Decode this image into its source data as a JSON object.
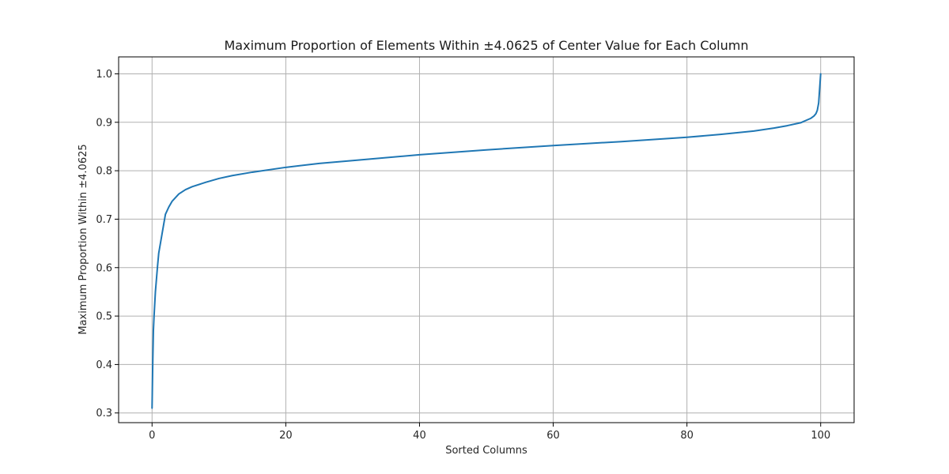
{
  "chart_data": {
    "type": "line",
    "title": "Maximum Proportion of Elements Within ±4.0625 of Center Value for Each Column",
    "xlabel": "Sorted Columns",
    "ylabel": "Maximum Proportion Within ±4.0625",
    "xlim": [
      -5,
      105
    ],
    "ylim": [
      0.28,
      1.035
    ],
    "xticks": [
      0,
      20,
      40,
      60,
      80,
      100
    ],
    "yticks": [
      0.3,
      0.4,
      0.5,
      0.6,
      0.7,
      0.8,
      0.9,
      1.0
    ],
    "xtick_labels": [
      "0",
      "20",
      "40",
      "60",
      "80",
      "100"
    ],
    "ytick_labels": [
      "0.3",
      "0.4",
      "0.5",
      "0.6",
      "0.7",
      "0.8",
      "0.9",
      "1.0"
    ],
    "grid": true,
    "line_color": "#1f77b4",
    "series": [
      {
        "x": [
          0,
          0.1,
          0.2,
          0.3,
          0.5,
          0.8,
          1.0,
          1.5,
          2.0,
          2.5,
          3.0,
          4.0,
          5.0,
          6.0,
          8.0,
          10.0,
          12.0,
          15.0,
          20.0,
          25.0,
          30.0,
          40.0,
          50.0,
          60.0,
          70.0,
          80.0,
          85.0,
          90.0,
          93.0,
          95.0,
          97.0,
          98.5,
          99.0,
          99.3,
          99.5,
          99.7,
          99.8,
          99.9,
          100.0
        ],
        "y": [
          0.31,
          0.4,
          0.47,
          0.5,
          0.55,
          0.6,
          0.63,
          0.67,
          0.71,
          0.725,
          0.737,
          0.752,
          0.761,
          0.767,
          0.776,
          0.784,
          0.79,
          0.797,
          0.807,
          0.815,
          0.821,
          0.833,
          0.843,
          0.852,
          0.86,
          0.869,
          0.875,
          0.882,
          0.888,
          0.893,
          0.899,
          0.908,
          0.913,
          0.918,
          0.925,
          0.94,
          0.96,
          0.98,
          1.0
        ]
      }
    ]
  }
}
